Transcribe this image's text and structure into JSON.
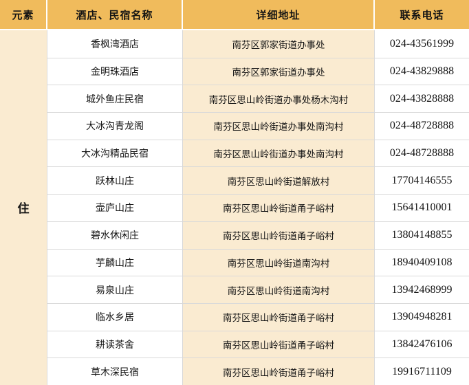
{
  "table": {
    "headers": [
      "元素",
      "酒店、民宿名称",
      "详细地址",
      "联系电话"
    ],
    "category_label": "住",
    "rows": [
      {
        "name": "香枫湾酒店",
        "address": "南芬区郭家街道办事处",
        "phone": "024-43561999"
      },
      {
        "name": "金明珠酒店",
        "address": "南芬区郭家街道办事处",
        "phone": "024-43829888"
      },
      {
        "name": "城外鱼庄民宿",
        "address": "南芬区思山岭街道办事处杨木沟村",
        "phone": "024-43828888"
      },
      {
        "name": "大冰沟青龙阁",
        "address": "南芬区思山岭街道办事处南沟村",
        "phone": "024-48728888"
      },
      {
        "name": "大冰沟精品民宿",
        "address": "南芬区思山岭街道办事处南沟村",
        "phone": "024-48728888"
      },
      {
        "name": "跃林山庄",
        "address": "南芬区思山岭街道解放村",
        "phone": "17704146555"
      },
      {
        "name": "壶庐山庄",
        "address": "南芬区思山岭街道甬子峪村",
        "phone": "15641410001"
      },
      {
        "name": "碧水休闲庄",
        "address": "南芬区思山岭街道甬子峪村",
        "phone": "13804148855"
      },
      {
        "name": "芋麟山庄",
        "address": "南芬区思山岭街道南沟村",
        "phone": "18940409108"
      },
      {
        "name": "易泉山庄",
        "address": "南芬区思山岭街道南沟村",
        "phone": "13942468999"
      },
      {
        "name": "临水乡居",
        "address": "南芬区思山岭街道甬子峪村",
        "phone": "13904948281"
      },
      {
        "name": "耕读茶舍",
        "address": "南芬区思山岭街道甬子峪村",
        "phone": "13842476106"
      },
      {
        "name": "草木深民宿",
        "address": "南芬区思山岭街道甬子峪村",
        "phone": "19916711109"
      }
    ]
  },
  "colors": {
    "header_bg": "#F0BB5C",
    "cream_bg": "#FAEBD1",
    "row_bg": "#FFFFFF",
    "border": "#D9D9D9",
    "text": "#141414"
  }
}
